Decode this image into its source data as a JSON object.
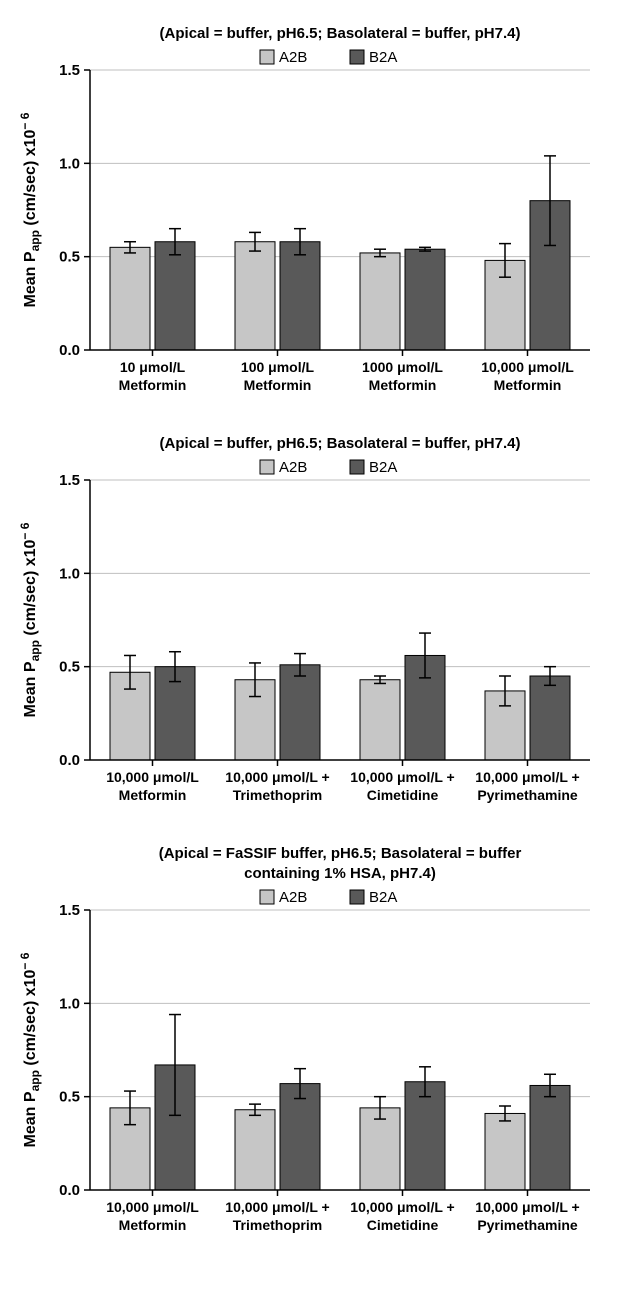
{
  "global": {
    "bar_colors": {
      "A2B": "#c6c6c6",
      "B2A": "#595959"
    },
    "bar_stroke": "#000000",
    "err_stroke": "#000000",
    "grid_color": "#bfbfbf",
    "axis_color": "#000000",
    "background_color": "#ffffff",
    "ylabel_html": "Mean P<tspan baseline-shift=\"sub\" font-size=\"12\">app</tspan> (cm/sec) x10<tspan baseline-shift=\"super\" font-size=\"12\">−6</tspan>",
    "legend": [
      "A2B",
      "B2A"
    ],
    "ylim": [
      0,
      1.5
    ],
    "ytick_step": 0.5,
    "bar_width": 0.32,
    "gap_between_pair": 0.04,
    "title_fontsize": 15,
    "label_fontsize": 16,
    "tick_fontsize": 15,
    "cat_fontsize": 14
  },
  "panels": [
    {
      "title_lines": [
        "(Apical = buffer, pH6.5; Basolateral = buffer, pH7.4)"
      ],
      "categories": [
        {
          "lines": [
            "10 μmol/L",
            "Metformin"
          ]
        },
        {
          "lines": [
            "100 μmol/L",
            "Metformin"
          ]
        },
        {
          "lines": [
            "1000 μmol/L",
            "Metformin"
          ]
        },
        {
          "lines": [
            "10,000 μmol/L",
            "Metformin"
          ]
        }
      ],
      "series": [
        {
          "name": "A2B",
          "values": [
            0.55,
            0.58,
            0.52,
            0.48
          ],
          "err": [
            0.03,
            0.05,
            0.02,
            0.09
          ]
        },
        {
          "name": "B2A",
          "values": [
            0.58,
            0.58,
            0.54,
            0.8
          ],
          "err": [
            0.07,
            0.07,
            0.01,
            0.24
          ]
        }
      ]
    },
    {
      "title_lines": [
        "(Apical = buffer, pH6.5; Basolateral = buffer, pH7.4)"
      ],
      "categories": [
        {
          "lines": [
            "10,000 μmol/L",
            "Metformin"
          ]
        },
        {
          "lines": [
            "10,000 μmol/L +",
            "Trimethoprim"
          ]
        },
        {
          "lines": [
            "10,000 μmol/L +",
            "Cimetidine"
          ]
        },
        {
          "lines": [
            "10,000 μmol/L +",
            "Pyrimethamine"
          ]
        }
      ],
      "series": [
        {
          "name": "A2B",
          "values": [
            0.47,
            0.43,
            0.43,
            0.37
          ],
          "err": [
            0.09,
            0.09,
            0.02,
            0.08
          ]
        },
        {
          "name": "B2A",
          "values": [
            0.5,
            0.51,
            0.56,
            0.45
          ],
          "err": [
            0.08,
            0.06,
            0.12,
            0.05
          ]
        }
      ]
    },
    {
      "title_lines": [
        "(Apical = FaSSIF buffer, pH6.5; Basolateral = buffer",
        "containing 1% HSA, pH7.4)"
      ],
      "categories": [
        {
          "lines": [
            "10,000 μmol/L",
            "Metformin"
          ]
        },
        {
          "lines": [
            "10,000 μmol/L +",
            "Trimethoprim"
          ]
        },
        {
          "lines": [
            "10,000 μmol/L +",
            "Cimetidine"
          ]
        },
        {
          "lines": [
            "10,000 μmol/L +",
            "Pyrimethamine"
          ]
        }
      ],
      "series": [
        {
          "name": "A2B",
          "values": [
            0.44,
            0.43,
            0.44,
            0.41
          ],
          "err": [
            0.09,
            0.03,
            0.06,
            0.04
          ]
        },
        {
          "name": "B2A",
          "values": [
            0.67,
            0.57,
            0.58,
            0.56
          ],
          "err": [
            0.27,
            0.08,
            0.08,
            0.06
          ]
        }
      ]
    }
  ]
}
